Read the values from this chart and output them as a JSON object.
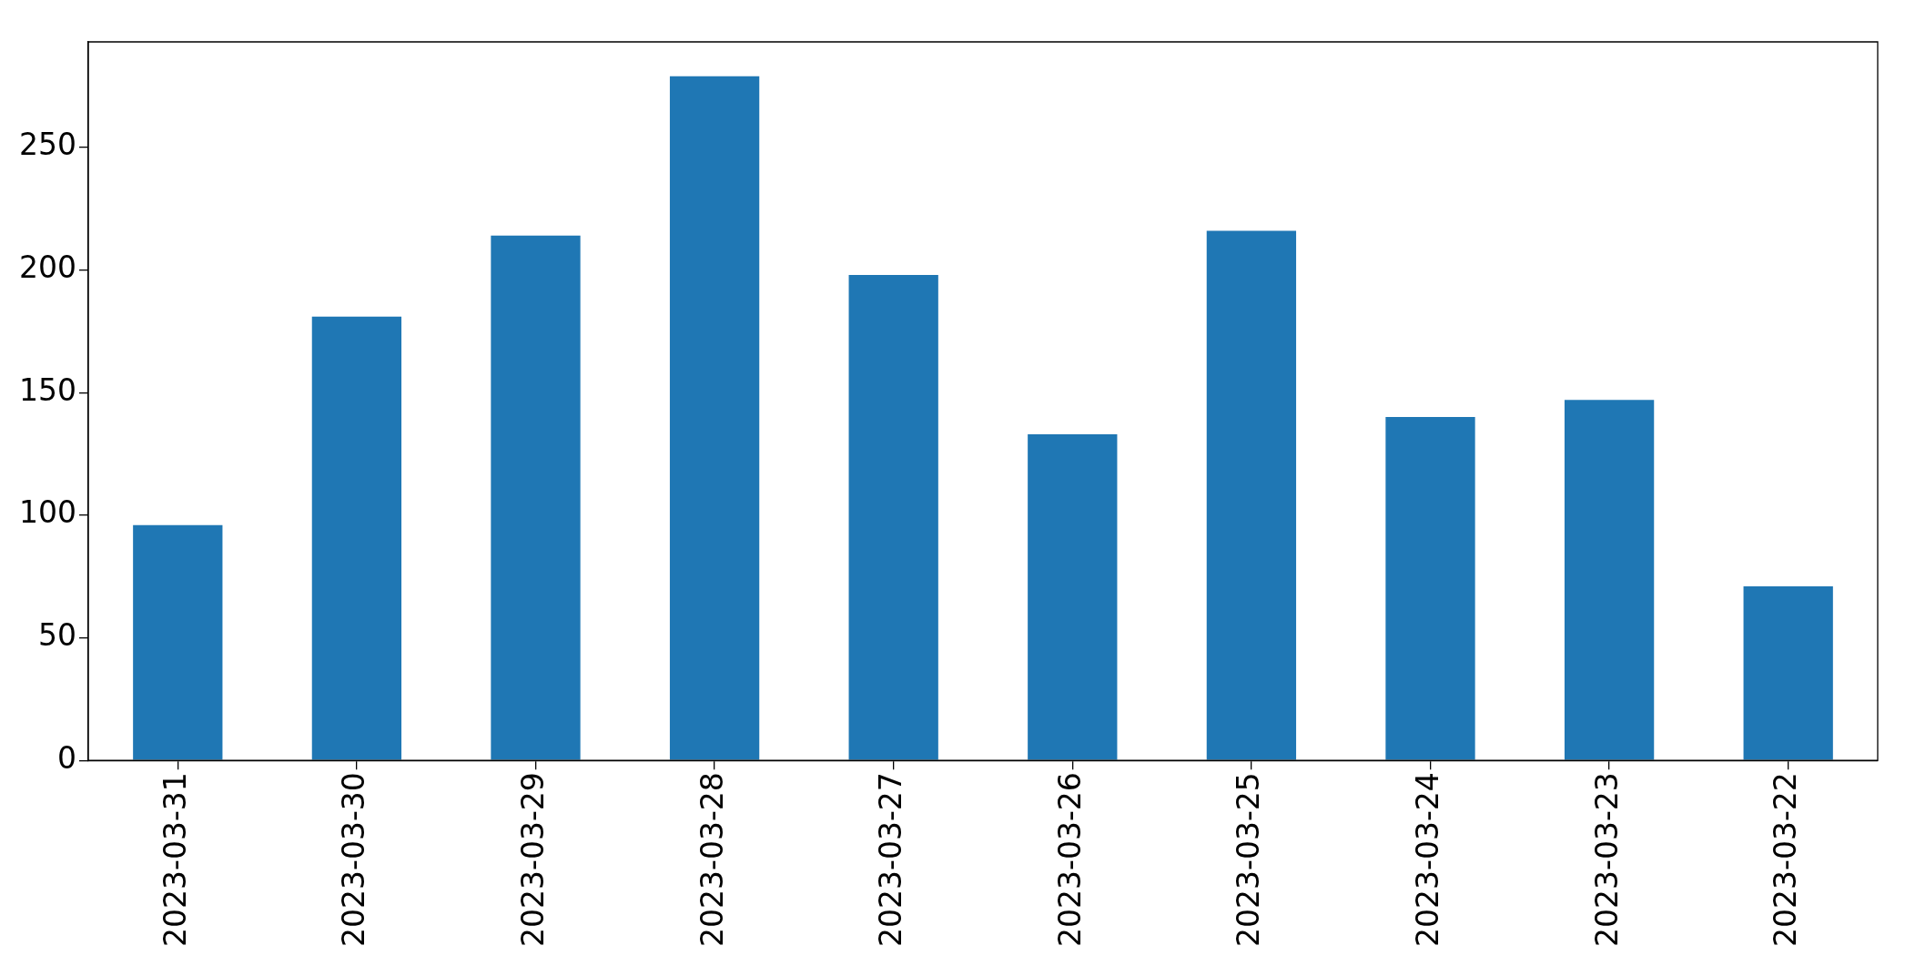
{
  "chart_data": {
    "type": "bar",
    "categories": [
      "2023-03-31",
      "2023-03-30",
      "2023-03-29",
      "2023-03-28",
      "2023-03-27",
      "2023-03-26",
      "2023-03-25",
      "2023-03-24",
      "2023-03-23",
      "2023-03-22"
    ],
    "values": [
      96,
      181,
      214,
      279,
      198,
      133,
      216,
      140,
      147,
      71
    ],
    "color": "#1f77b4",
    "ylim": [
      0,
      293
    ],
    "yticks": [
      0,
      50,
      100,
      150,
      200,
      250
    ],
    "grid": false,
    "legend": false
  }
}
